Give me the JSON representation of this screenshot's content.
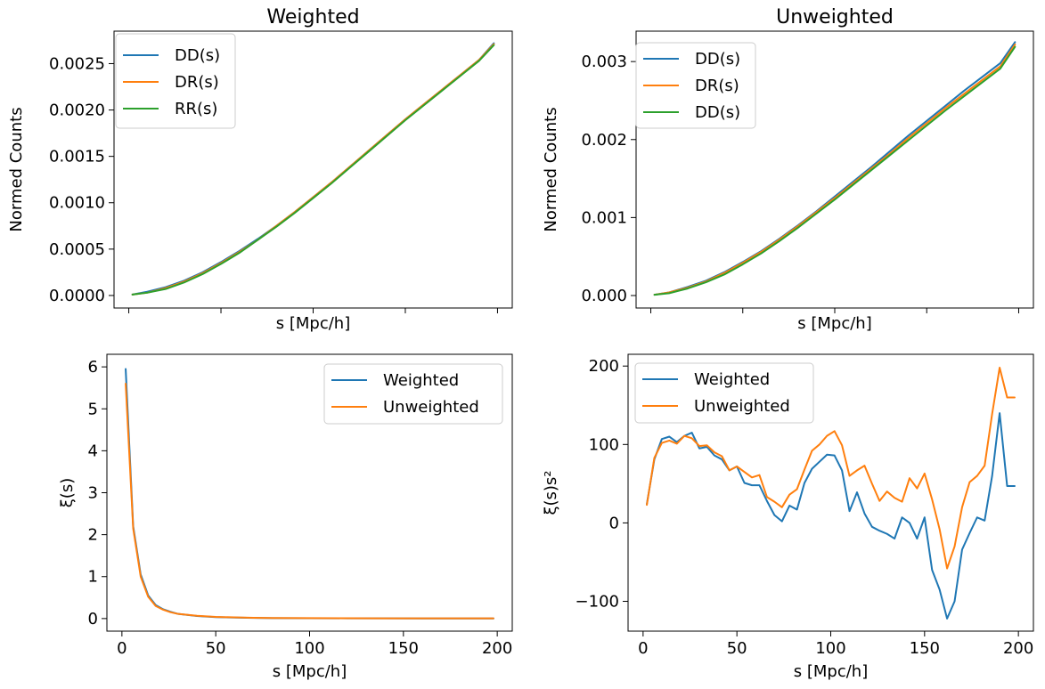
{
  "colors": {
    "blue": "#1f77b4",
    "orange": "#ff7f0e",
    "green": "#2ca02c"
  },
  "chart_data": [
    {
      "type": "line",
      "title": "Weighted",
      "xlabel": "s [Mpc/h]",
      "ylabel": "Normed Counts",
      "xlim": [
        -8,
        208
      ],
      "ylim": [
        -0.000135,
        0.00285
      ],
      "x_tick_labels_shown": false,
      "xticks": [
        0,
        50,
        100,
        150,
        200
      ],
      "yticks": [
        0.0,
        0.0005,
        0.001,
        0.0015,
        0.002,
        0.0025
      ],
      "ytick_labels": [
        "0.0000",
        "0.0005",
        "0.0010",
        "0.0015",
        "0.0020",
        "0.0025"
      ],
      "legend_position": "upper-left",
      "grid": false,
      "x": [
        2,
        10,
        20,
        30,
        40,
        50,
        60,
        70,
        80,
        90,
        100,
        110,
        120,
        130,
        140,
        150,
        160,
        170,
        180,
        190,
        198
      ],
      "series": [
        {
          "name": "DD(s)",
          "color": "#1f77b4",
          "values": [
            1e-05,
            4e-05,
            9e-05,
            0.00016,
            0.00025,
            0.00036,
            0.00048,
            0.00061,
            0.00075,
            0.0009,
            0.00106,
            0.00122,
            0.00139,
            0.00156,
            0.00173,
            0.0019,
            0.00206,
            0.00222,
            0.00238,
            0.00254,
            0.00272
          ]
        },
        {
          "name": "DR(s)",
          "color": "#ff7f0e",
          "values": [
            1e-05,
            3e-05,
            8e-05,
            0.00015,
            0.00024,
            0.00035,
            0.00047,
            0.0006,
            0.00075,
            0.0009,
            0.00106,
            0.00122,
            0.00139,
            0.00156,
            0.00173,
            0.0019,
            0.00206,
            0.00222,
            0.00238,
            0.00254,
            0.00271
          ]
        },
        {
          "name": "RR(s)",
          "color": "#2ca02c",
          "values": [
            1e-05,
            3e-05,
            7e-05,
            0.00014,
            0.00023,
            0.00034,
            0.00046,
            0.0006,
            0.00074,
            0.00089,
            0.00105,
            0.00121,
            0.00138,
            0.00155,
            0.00172,
            0.00189,
            0.00205,
            0.00221,
            0.00237,
            0.00253,
            0.0027
          ]
        }
      ]
    },
    {
      "type": "line",
      "title": "Unweighted",
      "xlabel": "s [Mpc/h]",
      "ylabel": "Normed Counts",
      "xlim": [
        -8,
        208
      ],
      "ylim": [
        -0.00016,
        0.00339
      ],
      "x_tick_labels_shown": false,
      "xticks": [
        0,
        50,
        100,
        150,
        200
      ],
      "yticks": [
        0.0,
        0.001,
        0.002,
        0.003
      ],
      "ytick_labels": [
        "0.000",
        "0.001",
        "0.002",
        "0.003"
      ],
      "legend_position": "upper-left",
      "grid": false,
      "x": [
        2,
        10,
        20,
        30,
        40,
        50,
        60,
        70,
        80,
        90,
        100,
        110,
        120,
        130,
        140,
        150,
        160,
        170,
        180,
        190,
        198
      ],
      "series": [
        {
          "name": "DD(s)",
          "color": "#1f77b4",
          "values": [
            1e-05,
            4e-05,
            0.00011,
            0.00019,
            0.0003,
            0.00043,
            0.00057,
            0.00073,
            0.0009,
            0.00108,
            0.00127,
            0.00146,
            0.00165,
            0.00185,
            0.00205,
            0.00224,
            0.00243,
            0.00262,
            0.0028,
            0.00298,
            0.00325
          ]
        },
        {
          "name": "DR(s)",
          "color": "#ff7f0e",
          "values": [
            1e-05,
            4e-05,
            0.0001,
            0.00018,
            0.00029,
            0.00042,
            0.00056,
            0.00072,
            0.00089,
            0.00107,
            0.00125,
            0.00144,
            0.00163,
            0.00182,
            0.00202,
            0.00221,
            0.0024,
            0.00258,
            0.00276,
            0.00294,
            0.00322
          ]
        },
        {
          "name": "DD(s)",
          "color": "#2ca02c",
          "values": [
            1e-05,
            3e-05,
            9e-05,
            0.00017,
            0.00027,
            0.0004,
            0.00054,
            0.0007,
            0.00087,
            0.00105,
            0.00123,
            0.00142,
            0.00161,
            0.0018,
            0.00199,
            0.00218,
            0.00237,
            0.00255,
            0.00273,
            0.00291,
            0.00319
          ]
        }
      ]
    },
    {
      "type": "line",
      "title": "",
      "xlabel": "s [Mpc/h]",
      "ylabel": "ξ(s)",
      "xlim": [
        -8,
        208
      ],
      "ylim": [
        -0.3,
        6.3
      ],
      "x_tick_labels_shown": true,
      "xticks": [
        0,
        50,
        100,
        150,
        200
      ],
      "xtick_labels": [
        "0",
        "50",
        "100",
        "150",
        "200"
      ],
      "yticks": [
        0,
        1,
        2,
        3,
        4,
        5,
        6
      ],
      "ytick_labels": [
        "0",
        "1",
        "2",
        "3",
        "4",
        "5",
        "6"
      ],
      "legend_position": "upper-right",
      "grid": false,
      "x": [
        2,
        6,
        10,
        14,
        18,
        22,
        26,
        30,
        40,
        50,
        60,
        70,
        80,
        100,
        120,
        140,
        160,
        180,
        198
      ],
      "series": [
        {
          "name": "Weighted",
          "color": "#1f77b4",
          "values": [
            5.95,
            2.2,
            1.05,
            0.55,
            0.32,
            0.22,
            0.16,
            0.11,
            0.06,
            0.035,
            0.025,
            0.015,
            0.01,
            0.008,
            0.006,
            0.004,
            0.003,
            0.003,
            0.002
          ]
        },
        {
          "name": "Unweighted",
          "color": "#ff7f0e",
          "values": [
            5.6,
            2.15,
            1.0,
            0.52,
            0.3,
            0.21,
            0.15,
            0.11,
            0.065,
            0.04,
            0.028,
            0.018,
            0.012,
            0.01,
            0.008,
            0.006,
            0.004,
            0.004,
            0.004
          ]
        }
      ]
    },
    {
      "type": "line",
      "title": "",
      "xlabel": "s [Mpc/h]",
      "ylabel": "ξ(s)s²",
      "xlim": [
        -8,
        208
      ],
      "ylim": [
        -138,
        215
      ],
      "x_tick_labels_shown": true,
      "xticks": [
        0,
        50,
        100,
        150,
        200
      ],
      "xtick_labels": [
        "0",
        "50",
        "100",
        "150",
        "200"
      ],
      "yticks": [
        -100,
        0,
        100,
        200
      ],
      "ytick_labels": [
        "−100",
        "0",
        "100",
        "200"
      ],
      "legend_position": "upper-left",
      "grid": false,
      "x": [
        2,
        6,
        10,
        14,
        18,
        22,
        26,
        30,
        34,
        38,
        42,
        46,
        50,
        54,
        58,
        62,
        66,
        70,
        74,
        78,
        82,
        86,
        90,
        94,
        98,
        102,
        106,
        110,
        114,
        118,
        122,
        126,
        130,
        134,
        138,
        142,
        146,
        150,
        154,
        158,
        162,
        166,
        170,
        174,
        178,
        182,
        186,
        190,
        194,
        198
      ],
      "series": [
        {
          "name": "Weighted",
          "color": "#1f77b4",
          "values": [
            24,
            81,
            107,
            110,
            103,
            111,
            115,
            95,
            97,
            86,
            81,
            67,
            72,
            51,
            48,
            48,
            28,
            10,
            2,
            22,
            17,
            51,
            69,
            78,
            87,
            86,
            67,
            15,
            39,
            12,
            -5,
            -10,
            -14,
            -20,
            7,
            0,
            -20,
            7,
            -60,
            -85,
            -122,
            -100,
            -34,
            -13,
            7,
            3,
            60,
            140,
            47,
            47
          ]
        },
        {
          "name": "Unweighted",
          "color": "#ff7f0e",
          "values": [
            23,
            83,
            102,
            105,
            101,
            111,
            108,
            98,
            99,
            90,
            85,
            67,
            72,
            65,
            58,
            61,
            33,
            27,
            20,
            36,
            43,
            68,
            92,
            100,
            111,
            117,
            99,
            60,
            67,
            73,
            50,
            28,
            40,
            32,
            27,
            57,
            44,
            63,
            30,
            -8,
            -58,
            -30,
            20,
            52,
            60,
            73,
            139,
            198,
            160,
            160
          ]
        }
      ]
    }
  ]
}
